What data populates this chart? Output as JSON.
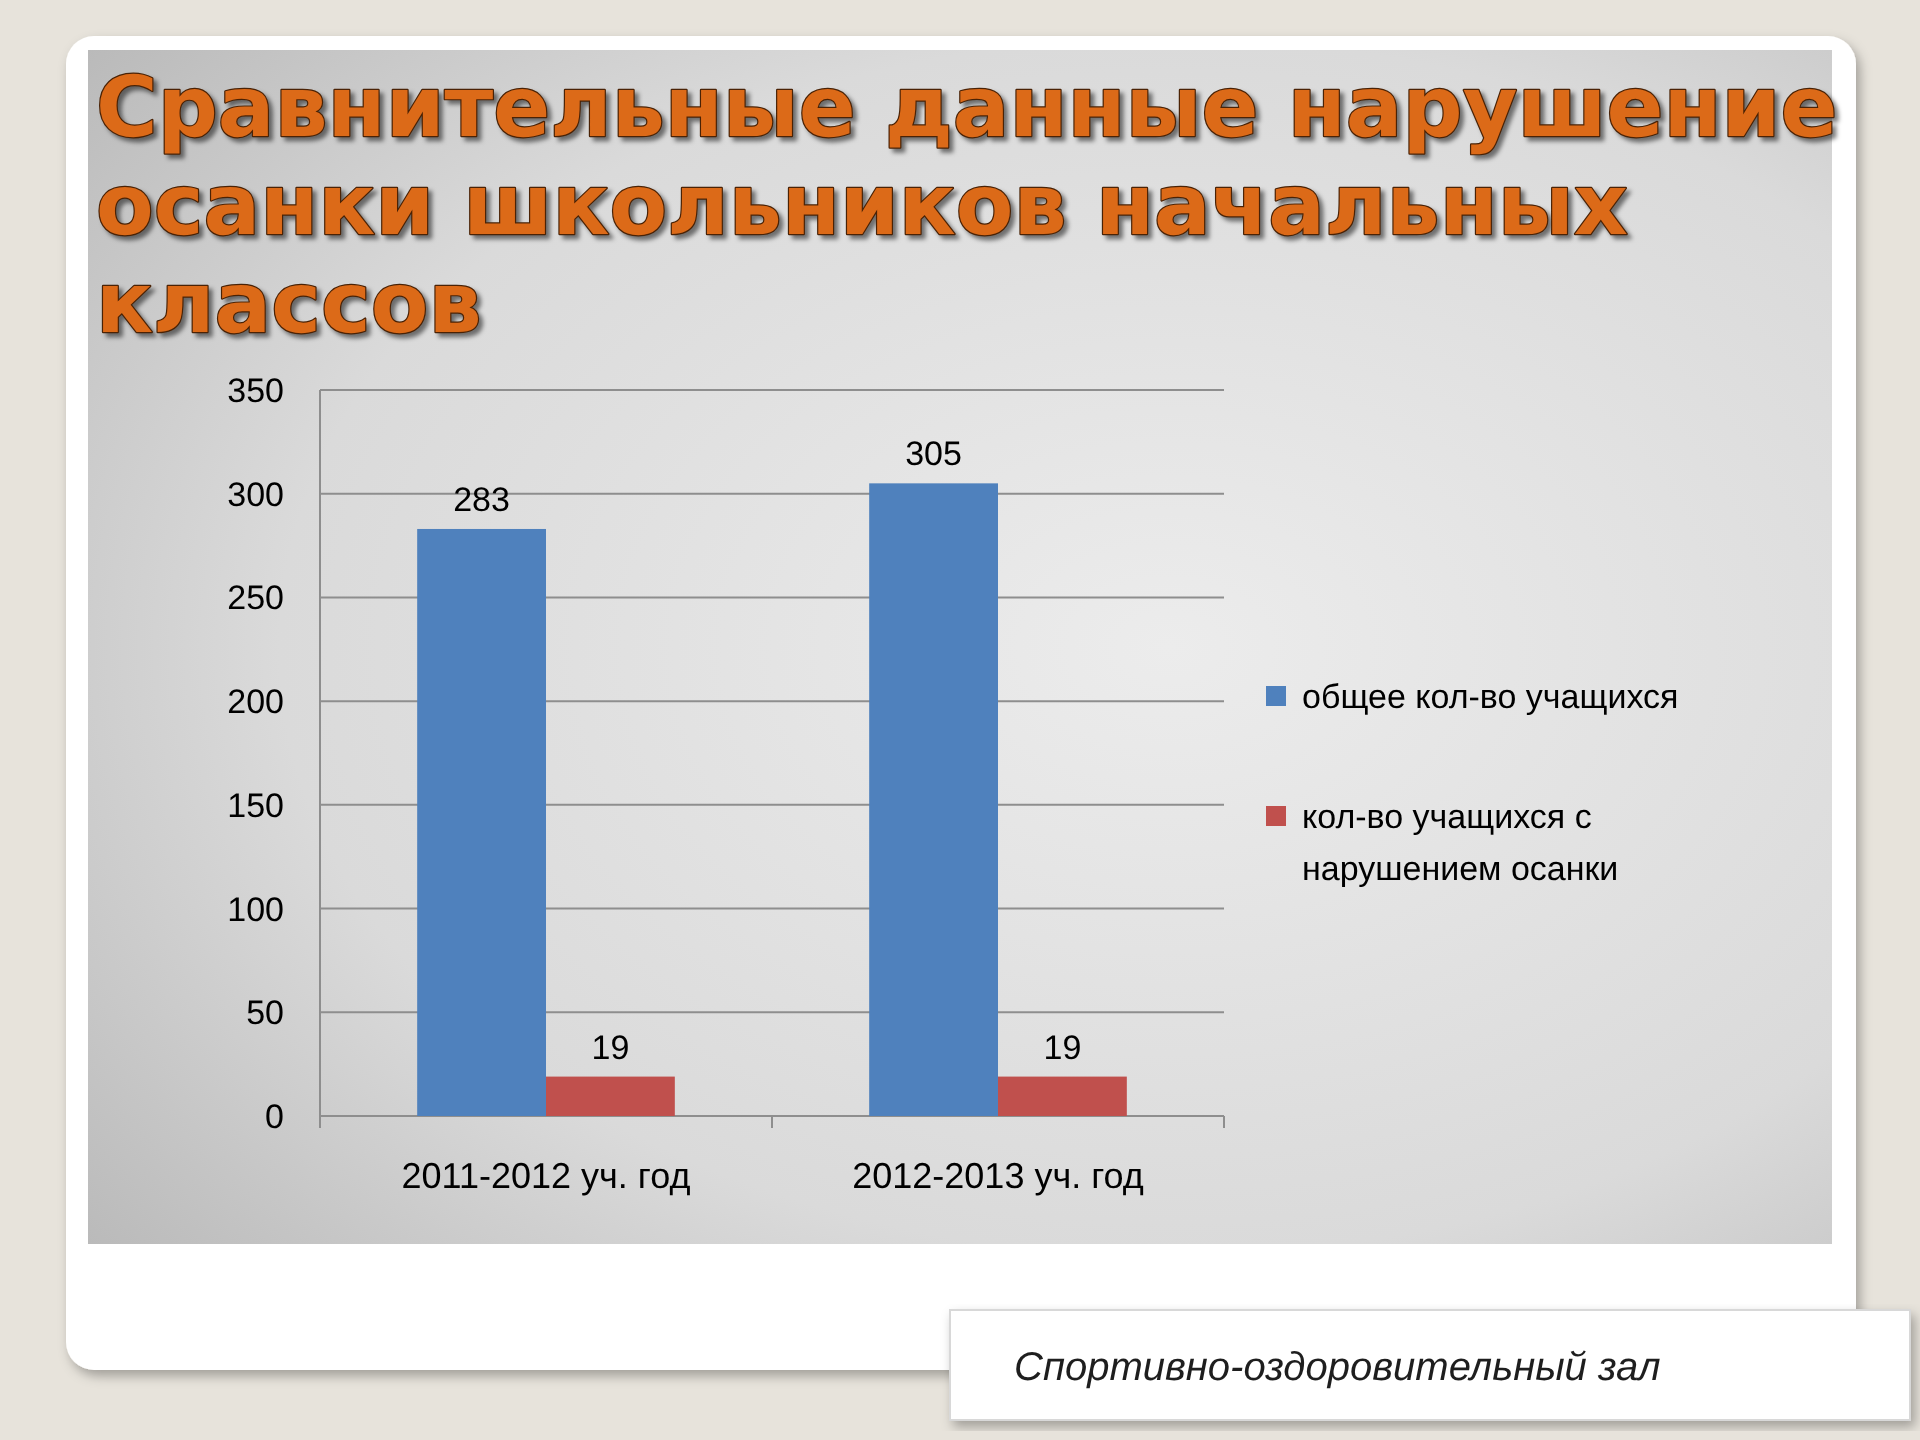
{
  "chart_data": {
    "type": "bar",
    "title": "Сравнительные данные нарушение осанки школьников начальных классов",
    "categories": [
      "2011-2012 уч. год",
      "2012-2013 уч. год"
    ],
    "series": [
      {
        "name": "общее кол-во учащихся",
        "color": "#4f81bd",
        "values": [
          283,
          305
        ]
      },
      {
        "name": "кол-во учащихся с нарушением осанки",
        "color": "#c0504d",
        "values": [
          19,
          19
        ]
      }
    ],
    "ylim": [
      0,
      350
    ],
    "yticks": [
      0,
      50,
      100,
      150,
      200,
      250,
      300,
      350
    ],
    "grid": "y",
    "legend": "right",
    "data_labels": true,
    "annotations": [
      "Спортивно-оздоровительный зал"
    ]
  }
}
